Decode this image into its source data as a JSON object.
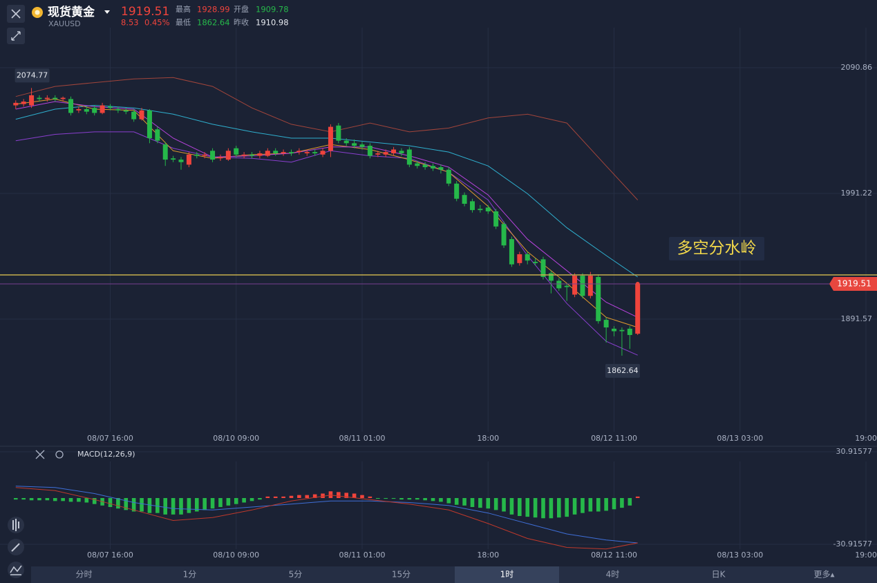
{
  "header": {
    "name": "现货黄金",
    "code": "XAUUSD",
    "price": 1919.51,
    "change": 8.53,
    "change_pct": "0.45%",
    "high_label": "最高",
    "high": 1928.99,
    "open_label": "开盘",
    "open": 1909.78,
    "low_label": "最低",
    "low": 1862.64,
    "prev_close_label": "昨收",
    "prev_close": 1910.98
  },
  "chart_data": {
    "type": "candlestick",
    "up_color": "#f0443c",
    "down_color": "#26b84a",
    "candles": [
      [
        2061,
        2065,
        2058,
        2063
      ],
      [
        2062,
        2066,
        2060,
        2064
      ],
      [
        2061,
        2074.77,
        2059,
        2069
      ],
      [
        2067,
        2069,
        2064,
        2066
      ],
      [
        2066,
        2069,
        2064,
        2067
      ],
      [
        2067,
        2069,
        2064,
        2066
      ],
      [
        2066,
        2068,
        2064,
        2067
      ],
      [
        2066,
        2068,
        2053,
        2055
      ],
      [
        2057,
        2060,
        2055,
        2058
      ],
      [
        2058,
        2060,
        2054,
        2056
      ],
      [
        2059,
        2061,
        2053,
        2055
      ],
      [
        2055,
        2063,
        2054,
        2061
      ],
      [
        2060,
        2062,
        2057,
        2059
      ],
      [
        2058,
        2060,
        2055,
        2057
      ],
      [
        2057,
        2059,
        2054,
        2056
      ],
      [
        2056,
        2058,
        2048,
        2050
      ],
      [
        2050,
        2059,
        2049,
        2057
      ],
      [
        2057,
        2058,
        2031,
        2035
      ],
      [
        2042,
        2044,
        2031,
        2033
      ],
      [
        2030,
        2032,
        2013,
        2018
      ],
      [
        2019,
        2021,
        2016,
        2018
      ],
      [
        2018,
        2020,
        2010,
        2016
      ],
      [
        2014,
        2024,
        2012,
        2022
      ],
      [
        2022,
        2024,
        2019,
        2021
      ],
      [
        2021,
        2024,
        2019,
        2022
      ],
      [
        2025,
        2027,
        2016,
        2018
      ],
      [
        2019,
        2022,
        2017,
        2020
      ],
      [
        2018,
        2027,
        2017,
        2025
      ],
      [
        2027,
        2029,
        2020,
        2022
      ],
      [
        2021,
        2024,
        2019,
        2022
      ],
      [
        2022,
        2024,
        2019,
        2021
      ],
      [
        2021,
        2025,
        2019,
        2023
      ],
      [
        2021,
        2027,
        2020,
        2025
      ],
      [
        2025,
        2027,
        2021,
        2023
      ],
      [
        2023,
        2026,
        2021,
        2024
      ],
      [
        2024,
        2026,
        2021,
        2023
      ],
      [
        2024,
        2027,
        2022,
        2025
      ],
      [
        2023,
        2026,
        2021,
        2024
      ],
      [
        2024,
        2026,
        2021,
        2023
      ],
      [
        2022,
        2027,
        2020,
        2025
      ],
      [
        2025,
        2046,
        2020,
        2044
      ],
      [
        2045,
        2047,
        2031,
        2033
      ],
      [
        2033,
        2035,
        2029,
        2031
      ],
      [
        2031,
        2034,
        2027,
        2029
      ],
      [
        2030,
        2032,
        2026,
        2028
      ],
      [
        2029,
        2031,
        2019,
        2021
      ],
      [
        2022,
        2025,
        2020,
        2023
      ],
      [
        2022,
        2026,
        2020,
        2024
      ],
      [
        2023,
        2028,
        2021,
        2026
      ],
      [
        2025,
        2027,
        2021,
        2023
      ],
      [
        2026,
        2028,
        2012,
        2014
      ],
      [
        2015,
        2017,
        2011,
        2013
      ],
      [
        2014,
        2016,
        2010,
        2012
      ],
      [
        2013,
        2015,
        2009,
        2011
      ],
      [
        2012,
        2014,
        2007,
        2010
      ],
      [
        2010,
        2012,
        1997,
        1999
      ],
      [
        1999,
        2001,
        1985,
        1987
      ],
      [
        1990,
        1992,
        1981,
        1983
      ],
      [
        1985,
        1987,
        1976,
        1978
      ],
      [
        1979,
        1982,
        1976,
        1978
      ],
      [
        1980,
        1982,
        1975,
        1977
      ],
      [
        1977,
        1979,
        1963,
        1965
      ],
      [
        1967,
        1969,
        1948,
        1950
      ],
      [
        1955,
        1957,
        1933,
        1935
      ],
      [
        1936,
        1945,
        1934,
        1943
      ],
      [
        1943,
        1945,
        1935,
        1938
      ],
      [
        1937,
        1940,
        1934,
        1936
      ],
      [
        1939,
        1941,
        1923,
        1925
      ],
      [
        1928,
        1930,
        1912,
        1922
      ],
      [
        1922,
        1924,
        1914,
        1916
      ],
      [
        1918,
        1920,
        1906,
        1917
      ],
      [
        1911,
        1928,
        1909,
        1926
      ],
      [
        1926,
        1928,
        1908,
        1910
      ],
      [
        1910,
        1928.99,
        1908,
        1926
      ],
      [
        1925,
        1927,
        1888,
        1890
      ],
      [
        1891,
        1893,
        1873,
        1885
      ],
      [
        1884,
        1886,
        1878,
        1882
      ],
      [
        1883,
        1885,
        1862.64,
        1882
      ],
      [
        1884,
        1886,
        1868,
        1879
      ],
      [
        1880,
        1921,
        1879,
        1919.51
      ]
    ],
    "xlim": [
      -2,
      109.4
    ],
    "xticks": [
      {
        "value": 12,
        "label": "08/07 16:00"
      },
      {
        "value": 28,
        "label": "08/10 09:00"
      },
      {
        "value": 44,
        "label": "08/11 01:00"
      },
      {
        "value": 60,
        "label": "18:00"
      },
      {
        "value": 76,
        "label": "08/12 11:00"
      },
      {
        "value": 92,
        "label": "08/13 03:00"
      },
      {
        "value": 108,
        "label": "19:00"
      }
    ],
    "ylim": [
      1791.4,
      2144.5
    ],
    "yticks": [
      2090.86,
      1991.22,
      1891.57
    ],
    "line_x": [
      0,
      5,
      10,
      15,
      20,
      25,
      30,
      35,
      40,
      45,
      50,
      55,
      60,
      65,
      70,
      75,
      79
    ],
    "lines": [
      {
        "color": "#a2453b",
        "values": [
          2068,
          2076,
          2079,
          2082,
          2083,
          2076,
          2059,
          2046,
          2040,
          2047,
          2040,
          2043,
          2051,
          2054,
          2047,
          2013,
          1986
        ]
      },
      {
        "color": "#2fb0cf",
        "values": [
          2050,
          2058,
          2061,
          2059,
          2054,
          2046,
          2040,
          2035,
          2035,
          2032,
          2029,
          2024,
          2013,
          1991,
          1964,
          1942,
          1925
        ]
      },
      {
        "color": "#8b3fd0",
        "values": [
          2033,
          2038,
          2040,
          2040,
          2027,
          2020,
          2019,
          2016,
          2025,
          2021,
          2019,
          2008,
          1986,
          1942,
          1904,
          1874,
          1863
        ]
      },
      {
        "color": "#e09a2e",
        "values": [
          2062,
          2066,
          2058,
          2057,
          2025,
          2019,
          2022,
          2023,
          2030,
          2026,
          2018,
          2008,
          1981,
          1945,
          1920,
          1893,
          1885
        ]
      },
      {
        "color": "#b843dd",
        "values": [
          2058,
          2064,
          2060,
          2058,
          2035,
          2020,
          2021,
          2023,
          2028,
          2028,
          2021,
          2012,
          1990,
          1955,
          1930,
          1905,
          1893
        ]
      }
    ],
    "last_price": 1919.51,
    "last_price_color": "#e8473f",
    "annotation": {
      "text": "多空分水岭",
      "value": 1926.6,
      "color": "#c8b04c"
    },
    "indicator": {
      "title": "MACD(12,26,9)",
      "ylim": [
        -44.75,
        33.68
      ],
      "yticks": [
        30.91577,
        -30.91577
      ],
      "histogram": [
        -1,
        -1,
        -1.5,
        -1.5,
        -1.5,
        -2,
        -2,
        -2.5,
        -2.5,
        -3,
        -4,
        -5,
        -6,
        -7,
        -8,
        -9,
        -9,
        -10,
        -10,
        -11,
        -11,
        -11,
        -10,
        -9,
        -8,
        -7,
        -6,
        -5,
        -4,
        -3,
        -2,
        -1,
        1,
        1,
        1,
        1.5,
        2,
        2,
        2.5,
        3,
        4.5,
        4,
        3.5,
        3,
        2,
        1,
        -0.5,
        -0.5,
        -0.5,
        -1,
        -1,
        -1,
        -1.5,
        -2,
        -2.5,
        -3.5,
        -4.5,
        -5,
        -6,
        -6.5,
        -7,
        -8,
        -9,
        -11,
        -12,
        -12.5,
        -13,
        -13.5,
        -13.5,
        -13,
        -12.5,
        -11,
        -10,
        -9,
        -9,
        -8.5,
        -7.5,
        -6.5,
        -5,
        1
      ],
      "lines": [
        {
          "color": "#3f6fd8",
          "values": [
            8,
            7,
            3,
            -3,
            -7,
            -8,
            -6,
            -4,
            -2,
            -2,
            -3,
            -5,
            -10,
            -17,
            -24,
            -28,
            -30
          ]
        },
        {
          "color": "#c0392b",
          "values": [
            7,
            5,
            -1,
            -8,
            -15,
            -13,
            -8,
            -2,
            2,
            -1,
            -4,
            -8,
            -17,
            -27,
            -33,
            -34,
            -30
          ]
        }
      ]
    }
  },
  "tabs": [
    "分时",
    "1分",
    "5分",
    "15分",
    "1时",
    "4时",
    "日K",
    "更多▴"
  ],
  "active_tab": 4
}
